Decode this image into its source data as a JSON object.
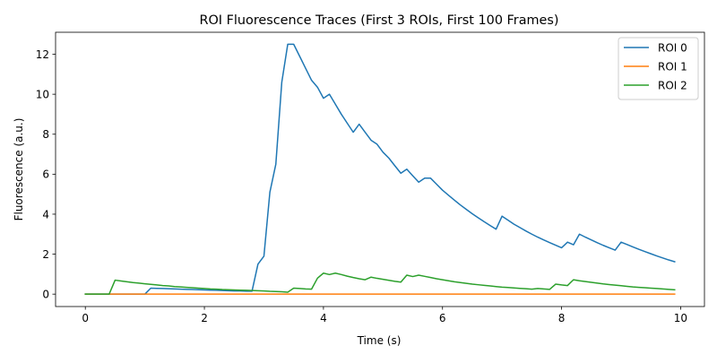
{
  "chart_data": {
    "type": "line",
    "title": "ROI Fluorescence Traces (First 3 ROIs, First 100 Frames)",
    "xlabel": "Time (s)",
    "ylabel": "Fluorescence (a.u.)",
    "xlim": [
      -0.5,
      10.4
    ],
    "ylim": [
      -0.62,
      13.1
    ],
    "xticks": [
      0,
      2,
      4,
      6,
      8,
      10
    ],
    "yticks": [
      0,
      2,
      4,
      6,
      8,
      10,
      12
    ],
    "grid": false,
    "legend_position": "top-right",
    "x": [
      0.0,
      0.1,
      0.2,
      0.3,
      0.4,
      0.5,
      0.6,
      0.7,
      0.8,
      0.9,
      1.0,
      1.1,
      1.2,
      1.3,
      1.4,
      1.5,
      1.6,
      1.7,
      1.8,
      1.9,
      2.0,
      2.1,
      2.2,
      2.3,
      2.4,
      2.5,
      2.6,
      2.7,
      2.8,
      2.9,
      3.0,
      3.1,
      3.2,
      3.3,
      3.4,
      3.5,
      3.6,
      3.7,
      3.8,
      3.9,
      4.0,
      4.1,
      4.2,
      4.3,
      4.4,
      4.5,
      4.6,
      4.7,
      4.8,
      4.9,
      5.0,
      5.1,
      5.2,
      5.3,
      5.4,
      5.5,
      5.6,
      5.7,
      5.8,
      5.9,
      6.0,
      6.1,
      6.2,
      6.3,
      6.4,
      6.5,
      6.6,
      6.7,
      6.8,
      6.9,
      7.0,
      7.1,
      7.2,
      7.3,
      7.4,
      7.5,
      7.6,
      7.7,
      7.8,
      7.9,
      8.0,
      8.1,
      8.2,
      8.3,
      8.4,
      8.5,
      8.6,
      8.7,
      8.8,
      8.9,
      9.0,
      9.1,
      9.2,
      9.3,
      9.4,
      9.5,
      9.6,
      9.7,
      9.8,
      9.9
    ],
    "series": [
      {
        "name": "ROI 0",
        "color": "#1f77b4",
        "values": [
          0,
          0,
          0,
          0,
          0,
          0,
          0,
          0,
          0,
          0,
          0,
          0.3,
          0.29,
          0.28,
          0.27,
          0.26,
          0.25,
          0.24,
          0.23,
          0.22,
          0.21,
          0.2,
          0.19,
          0.18,
          0.17,
          0.16,
          0.16,
          0.15,
          0.15,
          1.5,
          1.9,
          5.1,
          6.5,
          10.6,
          12.5,
          12.5,
          11.9,
          11.3,
          10.7,
          10.35,
          9.8,
          10.0,
          9.5,
          9.0,
          8.55,
          8.1,
          8.5,
          8.1,
          7.7,
          7.5,
          7.1,
          6.8,
          6.42,
          6.05,
          6.25,
          5.92,
          5.6,
          5.8,
          5.8,
          5.5,
          5.2,
          4.95,
          4.7,
          4.46,
          4.24,
          4.02,
          3.82,
          3.62,
          3.43,
          3.25,
          3.9,
          3.7,
          3.5,
          3.33,
          3.16,
          3.0,
          2.85,
          2.71,
          2.58,
          2.45,
          2.32,
          2.6,
          2.47,
          3.0,
          2.85,
          2.71,
          2.57,
          2.44,
          2.32,
          2.2,
          2.6,
          2.48,
          2.36,
          2.24,
          2.13,
          2.02,
          1.91,
          1.81,
          1.71,
          1.62
        ]
      },
      {
        "name": "ROI 1",
        "color": "#ff7f0e",
        "values": [
          0,
          0,
          0,
          0,
          0,
          0,
          0,
          0,
          0,
          0,
          0,
          0,
          0,
          0,
          0,
          0,
          0,
          0,
          0,
          0,
          0,
          0,
          0,
          0,
          0,
          0,
          0,
          0,
          0,
          0,
          0,
          0,
          0,
          0,
          0,
          0,
          0,
          0,
          0,
          0,
          0,
          0,
          0,
          0,
          0,
          0,
          0,
          0,
          0,
          0,
          0,
          0,
          0,
          0,
          0,
          0,
          0,
          0,
          0,
          0,
          0,
          0,
          0,
          0,
          0,
          0,
          0,
          0,
          0,
          0,
          0,
          0,
          0,
          0,
          0,
          0,
          0,
          0,
          0,
          0,
          0,
          0,
          0,
          0,
          0,
          0,
          0,
          0,
          0,
          0,
          0,
          0,
          0,
          0,
          0,
          0,
          0,
          0,
          0,
          0
        ]
      },
      {
        "name": "ROI 2",
        "color": "#2ca02c",
        "values": [
          0,
          0,
          0,
          0,
          0,
          0.7,
          0.66,
          0.62,
          0.58,
          0.55,
          0.52,
          0.49,
          0.46,
          0.43,
          0.41,
          0.38,
          0.36,
          0.34,
          0.32,
          0.3,
          0.28,
          0.26,
          0.25,
          0.23,
          0.22,
          0.21,
          0.2,
          0.19,
          0.18,
          0.17,
          0.16,
          0.14,
          0.13,
          0.12,
          0.1,
          0.3,
          0.28,
          0.26,
          0.25,
          0.8,
          1.05,
          0.98,
          1.05,
          0.98,
          0.9,
          0.83,
          0.77,
          0.72,
          0.85,
          0.79,
          0.74,
          0.69,
          0.64,
          0.6,
          0.95,
          0.88,
          0.95,
          0.89,
          0.83,
          0.77,
          0.72,
          0.67,
          0.62,
          0.58,
          0.54,
          0.5,
          0.47,
          0.44,
          0.41,
          0.38,
          0.35,
          0.33,
          0.31,
          0.29,
          0.27,
          0.25,
          0.28,
          0.26,
          0.24,
          0.5,
          0.46,
          0.43,
          0.72,
          0.67,
          0.63,
          0.59,
          0.55,
          0.51,
          0.48,
          0.45,
          0.42,
          0.39,
          0.36,
          0.34,
          0.32,
          0.3,
          0.28,
          0.26,
          0.24,
          0.22
        ]
      }
    ]
  }
}
